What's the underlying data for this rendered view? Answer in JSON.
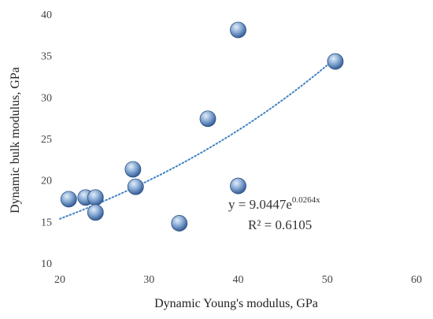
{
  "chart_data": {
    "type": "scatter",
    "xlabel": "Dynamic Young's modulus, GPa",
    "ylabel": "Dynamic bulk modulus, GPa",
    "xlim": [
      20,
      60
    ],
    "ylim": [
      10,
      40
    ],
    "x_ticks": [
      "20",
      "30",
      "40",
      "50",
      "60"
    ],
    "y_ticks": [
      "10",
      "15",
      "20",
      "25",
      "30",
      "35",
      "40"
    ],
    "grid": false,
    "points": [
      {
        "x": 21.0,
        "y": 17.7
      },
      {
        "x": 22.9,
        "y": 17.9
      },
      {
        "x": 24.0,
        "y": 17.9
      },
      {
        "x": 24.0,
        "y": 16.1
      },
      {
        "x": 28.2,
        "y": 21.3
      },
      {
        "x": 28.5,
        "y": 19.2
      },
      {
        "x": 33.4,
        "y": 14.8
      },
      {
        "x": 36.6,
        "y": 27.4
      },
      {
        "x": 40.0,
        "y": 19.3
      },
      {
        "x": 40.0,
        "y": 38.1
      },
      {
        "x": 50.9,
        "y": 34.3
      }
    ],
    "trendline": {
      "type": "exponential",
      "a": 9.0447,
      "b": 0.0264,
      "x_range": [
        20,
        51
      ]
    },
    "annotations": {
      "eq_prefix": "y = 9.0447e",
      "eq_exponent": "0.0264x",
      "r2_text": "R² = 0.6105"
    },
    "colors": {
      "marker": "#4f78b8",
      "marker_highlight": "#e3edf8",
      "trendline": "#3d82c5",
      "axis_text": "#444444"
    }
  }
}
